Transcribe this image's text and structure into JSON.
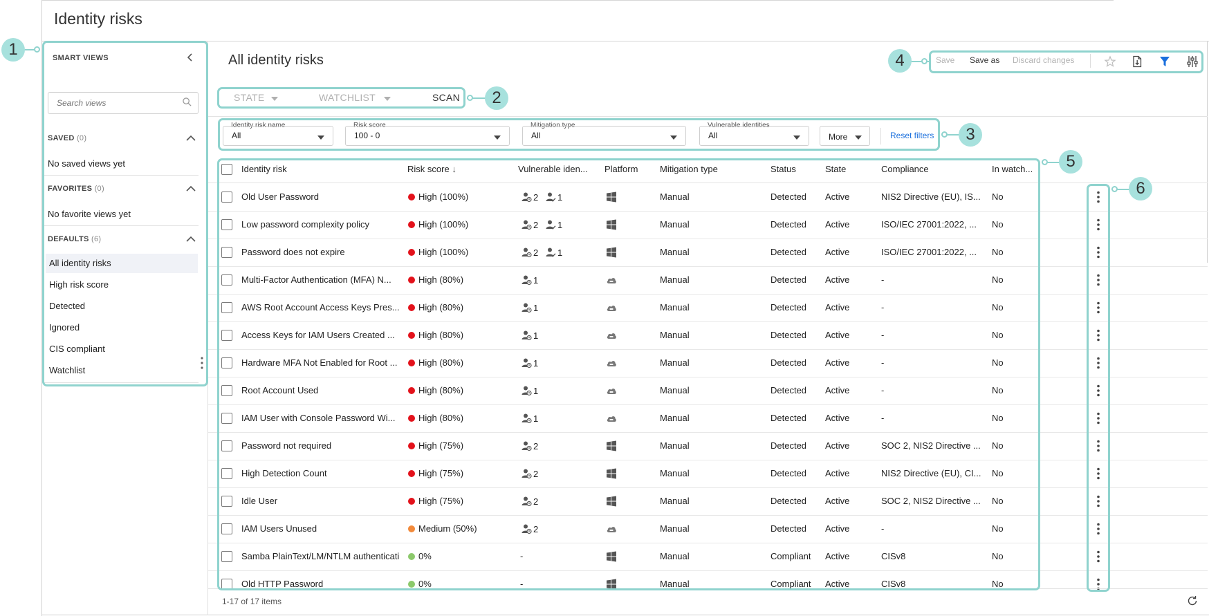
{
  "page": {
    "title": "Identity risks"
  },
  "sidebar": {
    "title": "SMART VIEWS",
    "search_placeholder": "Search views",
    "saved": {
      "label": "SAVED",
      "count": "(0)",
      "empty": "No saved views yet"
    },
    "favorites": {
      "label": "FAVORITES",
      "count": "(0)",
      "empty": "No favorite views yet"
    },
    "defaults": {
      "label": "DEFAULTS",
      "count": "(6)",
      "items": [
        "All identity risks",
        "High risk score",
        "Detected",
        "Ignored",
        "CIS compliant",
        "Watchlist"
      ],
      "active_index": 0
    }
  },
  "main": {
    "title": "All identity risks",
    "toolbar": {
      "save": "Save",
      "save_as": "Save as",
      "discard": "Discard changes"
    },
    "tabs": [
      "STATE",
      "WATCHLIST",
      "SCAN"
    ],
    "filters": [
      {
        "label": "Identity risk name",
        "value": "All"
      },
      {
        "label": "Risk score",
        "value": "100 - 0"
      },
      {
        "label": "Mitigation type",
        "value": "All"
      },
      {
        "label": "Vulnerable identities",
        "value": "All"
      }
    ],
    "more": "More",
    "reset": "Reset filters"
  },
  "table": {
    "columns": [
      "Identity risk",
      "Risk score",
      "Vulnerable iden...",
      "Platform",
      "Mitigation type",
      "Status",
      "State",
      "Compliance",
      "In watch..."
    ],
    "sort_indicator": "↓",
    "rows": [
      {
        "name": "Old User Password",
        "risk": "High (100%)",
        "level": "high",
        "vuln": [
          "2",
          "1"
        ],
        "platform": "windows",
        "mitigation": "Manual",
        "status": "Detected",
        "state": "Active",
        "compliance": "NIS2 Directive (EU), IS...",
        "watch": "No"
      },
      {
        "name": "Low password complexity policy",
        "risk": "High (100%)",
        "level": "high",
        "vuln": [
          "2",
          "1"
        ],
        "platform": "windows",
        "mitigation": "Manual",
        "status": "Detected",
        "state": "Active",
        "compliance": "ISO/IEC 27001:2022, ...",
        "watch": "No"
      },
      {
        "name": "Password does not expire",
        "risk": "High (100%)",
        "level": "high",
        "vuln": [
          "2",
          "1"
        ],
        "platform": "windows",
        "mitigation": "Manual",
        "status": "Detected",
        "state": "Active",
        "compliance": "ISO/IEC 27001:2022, ...",
        "watch": "No"
      },
      {
        "name": "Multi-Factor Authentication (MFA) N...",
        "risk": "High (80%)",
        "level": "high",
        "vuln": [
          "1"
        ],
        "platform": "cloud",
        "mitigation": "Manual",
        "status": "Detected",
        "state": "Active",
        "compliance": "-",
        "watch": "No"
      },
      {
        "name": "AWS Root Account Access Keys Pres...",
        "risk": "High (80%)",
        "level": "high",
        "vuln": [
          "1"
        ],
        "platform": "cloud",
        "mitigation": "Manual",
        "status": "Detected",
        "state": "Active",
        "compliance": "-",
        "watch": "No"
      },
      {
        "name": "Access Keys for IAM Users Created ...",
        "risk": "High (80%)",
        "level": "high",
        "vuln": [
          "1"
        ],
        "platform": "cloud",
        "mitigation": "Manual",
        "status": "Detected",
        "state": "Active",
        "compliance": "-",
        "watch": "No"
      },
      {
        "name": "Hardware MFA Not Enabled for Root ...",
        "risk": "High (80%)",
        "level": "high",
        "vuln": [
          "1"
        ],
        "platform": "cloud",
        "mitigation": "Manual",
        "status": "Detected",
        "state": "Active",
        "compliance": "-",
        "watch": "No"
      },
      {
        "name": "Root Account Used",
        "risk": "High (80%)",
        "level": "high",
        "vuln": [
          "1"
        ],
        "platform": "cloud",
        "mitigation": "Manual",
        "status": "Detected",
        "state": "Active",
        "compliance": "-",
        "watch": "No"
      },
      {
        "name": "IAM User with Console Password Wi...",
        "risk": "High (80%)",
        "level": "high",
        "vuln": [
          "1"
        ],
        "platform": "cloud",
        "mitigation": "Manual",
        "status": "Detected",
        "state": "Active",
        "compliance": "-",
        "watch": "No"
      },
      {
        "name": "Password not required",
        "risk": "High (75%)",
        "level": "high",
        "vuln": [
          "2"
        ],
        "platform": "windows",
        "mitigation": "Manual",
        "status": "Detected",
        "state": "Active",
        "compliance": "SOC 2, NIS2 Directive ...",
        "watch": "No"
      },
      {
        "name": "High Detection Count",
        "risk": "High (75%)",
        "level": "high",
        "vuln": [
          "2"
        ],
        "platform": "windows",
        "mitigation": "Manual",
        "status": "Detected",
        "state": "Active",
        "compliance": "NIS2 Directive (EU), CI...",
        "watch": "No"
      },
      {
        "name": "Idle User",
        "risk": "High (75%)",
        "level": "high",
        "vuln": [
          "2"
        ],
        "platform": "windows",
        "mitigation": "Manual",
        "status": "Detected",
        "state": "Active",
        "compliance": "SOC 2, NIS2 Directive ...",
        "watch": "No"
      },
      {
        "name": "IAM Users Unused",
        "risk": "Medium (50%)",
        "level": "medium",
        "vuln": [
          "2"
        ],
        "platform": "cloud",
        "mitigation": "Manual",
        "status": "Detected",
        "state": "Active",
        "compliance": "-",
        "watch": "No"
      },
      {
        "name": "Samba PlainText/LM/NTLM authenticati",
        "risk": "0%",
        "level": "low",
        "vuln": [],
        "vuln_text": "-",
        "platform": "windows",
        "mitigation": "Manual",
        "status": "Compliant",
        "state": "Active",
        "compliance": "CISv8",
        "watch": "No"
      },
      {
        "name": "Old HTTP Password",
        "risk": "0%",
        "level": "low",
        "vuln": [],
        "vuln_text": "-",
        "platform": "windows",
        "mitigation": "Manual",
        "status": "Compliant",
        "state": "Active",
        "compliance": "CISv8",
        "watch": "No"
      }
    ],
    "footer": "1-17 of 17 items"
  },
  "callouts": [
    "1",
    "2",
    "3",
    "4",
    "5",
    "6"
  ],
  "colors": {
    "high": "#e3121b",
    "medium": "#f28a3b",
    "low": "#8cc96b",
    "accent": "#1a6fdd",
    "highlight": "#8fd3ce"
  }
}
